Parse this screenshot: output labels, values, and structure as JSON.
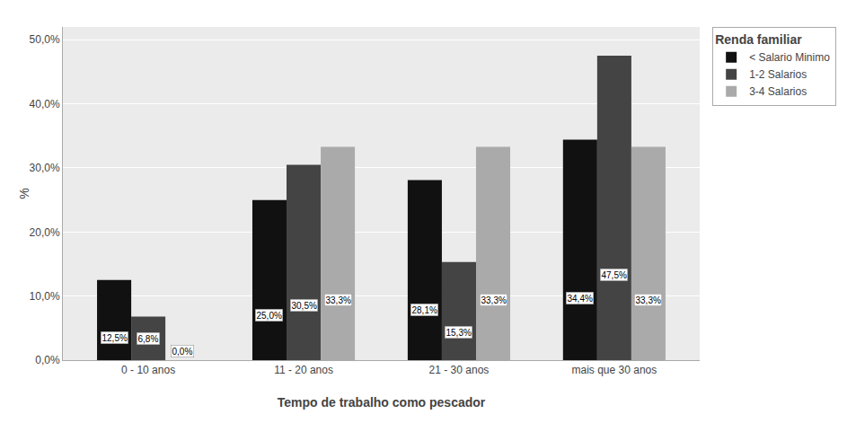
{
  "chart_data": {
    "type": "bar",
    "categories": [
      "0 - 10 anos",
      "11 - 20 anos",
      "21 - 30 anos",
      "mais que 30 anos"
    ],
    "series": [
      {
        "name": "< Salario Minimo",
        "color": "#111111",
        "values": [
          12.5,
          25.0,
          28.1,
          34.4
        ],
        "value_labels": [
          "12,5%",
          "25,0%",
          "28,1%",
          "34,4%"
        ]
      },
      {
        "name": "1-2 Salarios",
        "color": "#444444",
        "values": [
          6.8,
          30.5,
          15.3,
          47.5
        ],
        "value_labels": [
          "6,8%",
          "30,5%",
          "15,3%",
          "47,5%"
        ]
      },
      {
        "name": "3-4 Salarios",
        "color": "#aaaaaa",
        "values": [
          0.0,
          33.3,
          33.3,
          33.3
        ],
        "value_labels": [
          "0,0%",
          "33,3%",
          "33,3%",
          "33,3%"
        ]
      }
    ],
    "xlabel": "Tempo de trabalho como pescador",
    "ylabel": "%",
    "legend_title": "Renda familiar",
    "ylim": [
      0,
      52
    ],
    "yticks": [
      {
        "value": 0.0,
        "label": "0,0%"
      },
      {
        "value": 10.0,
        "label": "10,0%"
      },
      {
        "value": 20.0,
        "label": "20,0%"
      },
      {
        "value": 30.0,
        "label": "30,0%"
      },
      {
        "value": 40.0,
        "label": "40,0%"
      },
      {
        "value": 50.0,
        "label": "50,0%"
      }
    ],
    "grid": true,
    "legend": "right",
    "data_labels": true
  }
}
